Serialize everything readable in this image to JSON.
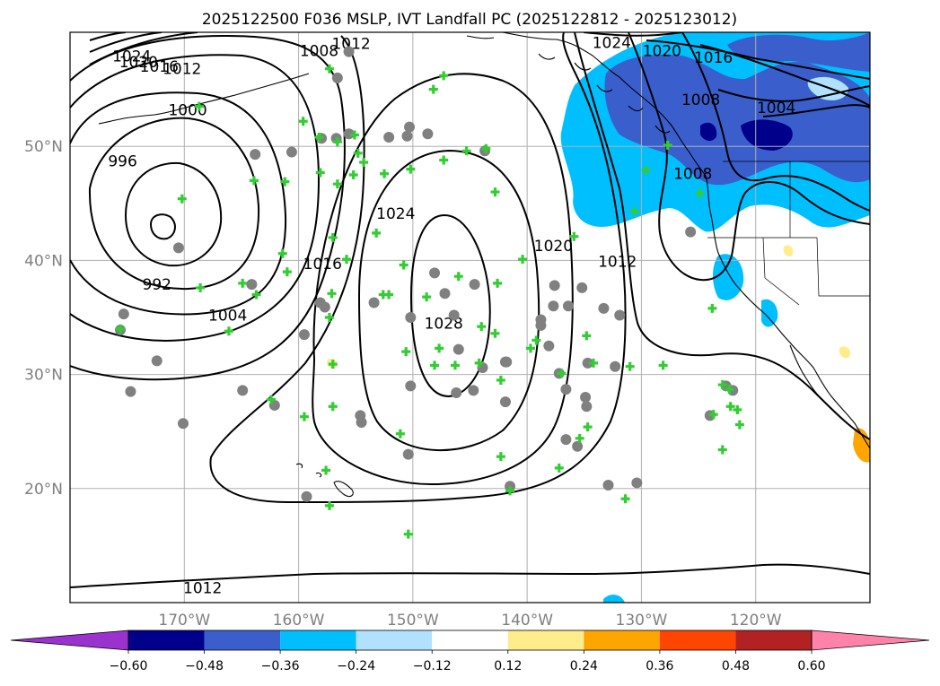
{
  "title": "2025122500 F036 MSLP, IVT Landfall PC (2025122812 - 2025123012)",
  "map": {
    "lon_ticks": [
      {
        "lon": -170,
        "label": "170°W"
      },
      {
        "lon": -160,
        "label": "160°W"
      },
      {
        "lon": -150,
        "label": "150°W"
      },
      {
        "lon": -140,
        "label": "140°W"
      },
      {
        "lon": -130,
        "label": "130°W"
      },
      {
        "lon": -120,
        "label": "120°W"
      }
    ],
    "lat_ticks": [
      {
        "lat": 20,
        "label": "20°N"
      },
      {
        "lat": 30,
        "label": "30°N"
      },
      {
        "lat": 40,
        "label": "40°N"
      },
      {
        "lat": 50,
        "label": "50°N"
      }
    ],
    "gridlines": true,
    "contour_labels": [
      {
        "text": "1024",
        "lon": -174.6,
        "lat": 57.9
      },
      {
        "text": "1020",
        "lon": -174.0,
        "lat": 57.4
      },
      {
        "text": "1016",
        "lon": -172.2,
        "lat": 57.0
      },
      {
        "text": "1012",
        "lon": -170.2,
        "lat": 56.8
      },
      {
        "text": "1008",
        "lon": -158.2,
        "lat": 58.4
      },
      {
        "text": "1012",
        "lon": -155.4,
        "lat": 59.0
      },
      {
        "text": "1000",
        "lon": -169.7,
        "lat": 53.2
      },
      {
        "text": "996",
        "lon": -175.4,
        "lat": 48.7
      },
      {
        "text": "992",
        "lon": -172.4,
        "lat": 37.9
      },
      {
        "text": "1004",
        "lon": -166.2,
        "lat": 35.2
      },
      {
        "text": "1016",
        "lon": -157.9,
        "lat": 39.7
      },
      {
        "text": "1024",
        "lon": -151.5,
        "lat": 44.1
      },
      {
        "text": "1028",
        "lon": -147.3,
        "lat": 34.5
      },
      {
        "text": "1020",
        "lon": -137.7,
        "lat": 41.3
      },
      {
        "text": "1012",
        "lon": -132.1,
        "lat": 39.9
      },
      {
        "text": "1024",
        "lon": -132.6,
        "lat": 59.1
      },
      {
        "text": "1020",
        "lon": -128.2,
        "lat": 58.4
      },
      {
        "text": "1016",
        "lon": -123.7,
        "lat": 57.8
      },
      {
        "text": "1008",
        "lon": -124.8,
        "lat": 54.1
      },
      {
        "text": "1004",
        "lon": -118.2,
        "lat": 53.4
      },
      {
        "text": "1008",
        "lon": -125.5,
        "lat": 47.6
      },
      {
        "text": "1012",
        "lon": -168.4,
        "lat": 11.3
      }
    ],
    "markers_plus": [
      [
        -157.3,
        56.8
      ],
      [
        -148.2,
        55.0
      ],
      [
        -147.3,
        56.2
      ],
      [
        -168.7,
        53.5
      ],
      [
        -159.6,
        52.2
      ],
      [
        -158.2,
        50.8
      ],
      [
        -156.6,
        50.4
      ],
      [
        -155.1,
        51.0
      ],
      [
        -154.8,
        49.4
      ],
      [
        -154.3,
        48.6
      ],
      [
        -158.1,
        47.7
      ],
      [
        -156.6,
        46.7
      ],
      [
        -155.2,
        47.5
      ],
      [
        -152.5,
        47.6
      ],
      [
        -150.2,
        48.0
      ],
      [
        -147.3,
        48.8
      ],
      [
        -145.3,
        49.6
      ],
      [
        -143.6,
        49.8
      ],
      [
        -142.8,
        46.0
      ],
      [
        -163.9,
        47.0
      ],
      [
        -161.2,
        46.9
      ],
      [
        -170.2,
        45.4
      ],
      [
        -153.2,
        42.4
      ],
      [
        -157.0,
        42.0
      ],
      [
        -161.4,
        40.6
      ],
      [
        -155.8,
        40.1
      ],
      [
        -161.0,
        39.0
      ],
      [
        -150.8,
        39.6
      ],
      [
        -146.0,
        38.6
      ],
      [
        -142.6,
        38.0
      ],
      [
        -140.4,
        40.1
      ],
      [
        -168.6,
        37.6
      ],
      [
        -164.9,
        38.0
      ],
      [
        -163.7,
        37.0
      ],
      [
        -157.1,
        37.1
      ],
      [
        -152.6,
        37.0
      ],
      [
        -152.1,
        37.0
      ],
      [
        -148.8,
        36.8
      ],
      [
        -157.3,
        35.0
      ],
      [
        -144.0,
        34.2
      ],
      [
        -142.8,
        33.6
      ],
      [
        -166.1,
        33.8
      ],
      [
        -175.6,
        34.0
      ],
      [
        -150.6,
        32.0
      ],
      [
        -147.7,
        32.3
      ],
      [
        -148.1,
        30.8
      ],
      [
        -146.3,
        30.8
      ],
      [
        -144.2,
        31.0
      ],
      [
        -139.7,
        32.3
      ],
      [
        -139.2,
        33.0
      ],
      [
        -134.8,
        33.4
      ],
      [
        -137.0,
        30.1
      ],
      [
        -142.3,
        29.5
      ],
      [
        -157.0,
        30.9
      ],
      [
        -157.0,
        27.2
      ],
      [
        -162.4,
        27.8
      ],
      [
        -159.5,
        26.3
      ],
      [
        -151.1,
        24.8
      ],
      [
        -150.4,
        16.0
      ],
      [
        -142.3,
        22.8
      ],
      [
        -141.5,
        19.8
      ],
      [
        -134.7,
        25.4
      ],
      [
        -135.4,
        24.4
      ],
      [
        -137.2,
        21.8
      ],
      [
        -131.4,
        19.1
      ],
      [
        -157.6,
        21.6
      ],
      [
        -157.3,
        18.5
      ],
      [
        -128.1,
        30.8
      ],
      [
        -131.0,
        30.7
      ],
      [
        -134.2,
        31.0
      ],
      [
        -123.8,
        35.8
      ],
      [
        -122.9,
        29.1
      ],
      [
        -122.3,
        28.7
      ],
      [
        -122.2,
        27.2
      ],
      [
        -121.6,
        26.9
      ],
      [
        -121.4,
        25.6
      ],
      [
        -123.7,
        26.5
      ],
      [
        -122.9,
        23.4
      ],
      [
        -135.9,
        42.1
      ],
      [
        -130.6,
        44.3
      ],
      [
        -129.6,
        47.9
      ],
      [
        -127.7,
        50.1
      ],
      [
        -124.9,
        45.9
      ]
    ],
    "markers_dot": [
      [
        -156.6,
        56.0
      ],
      [
        -155.6,
        58.3
      ],
      [
        -148.7,
        51.1
      ],
      [
        -150.3,
        51.7
      ],
      [
        -150.5,
        50.9
      ],
      [
        -152.1,
        50.8
      ],
      [
        -156.7,
        50.7
      ],
      [
        -158.0,
        50.7
      ],
      [
        -155.6,
        51.1
      ],
      [
        -160.6,
        49.5
      ],
      [
        -163.8,
        49.3
      ],
      [
        -143.7,
        49.6
      ],
      [
        -170.5,
        41.1
      ],
      [
        -175.3,
        35.3
      ],
      [
        -175.6,
        33.9
      ],
      [
        -172.4,
        31.2
      ],
      [
        -174.7,
        28.5
      ],
      [
        -170.1,
        25.7
      ],
      [
        -164.9,
        28.6
      ],
      [
        -162.1,
        27.3
      ],
      [
        -164.1,
        37.9
      ],
      [
        -158.1,
        36.3
      ],
      [
        -157.7,
        35.9
      ],
      [
        -159.5,
        33.5
      ],
      [
        -153.4,
        36.3
      ],
      [
        -150.2,
        35.0
      ],
      [
        -148.1,
        38.9
      ],
      [
        -147.2,
        37.1
      ],
      [
        -146.4,
        35.2
      ],
      [
        -144.6,
        37.9
      ],
      [
        -143.9,
        30.6
      ],
      [
        -141.9,
        31.1
      ],
      [
        -141.9,
        27.6
      ],
      [
        -141.5,
        20.2
      ],
      [
        -138.8,
        34.8
      ],
      [
        -138.8,
        34.3
      ],
      [
        -136.4,
        36.0
      ],
      [
        -137.6,
        37.8
      ],
      [
        -137.7,
        36.0
      ],
      [
        -135.2,
        37.6
      ],
      [
        -133.3,
        35.8
      ],
      [
        -134.7,
        31.0
      ],
      [
        -137.2,
        30.1
      ],
      [
        -136.6,
        28.7
      ],
      [
        -134.9,
        28.0
      ],
      [
        -134.8,
        27.2
      ],
      [
        -135.6,
        23.7
      ],
      [
        -136.6,
        24.3
      ],
      [
        -138.1,
        32.5
      ],
      [
        -132.9,
        20.3
      ],
      [
        -130.4,
        20.5
      ],
      [
        -131.9,
        35.2
      ],
      [
        -132.3,
        30.7
      ],
      [
        -146.0,
        32.2
      ],
      [
        -146.2,
        28.4
      ],
      [
        -144.7,
        28.6
      ],
      [
        -141.8,
        31.1
      ],
      [
        -154.6,
        26.4
      ],
      [
        -154.5,
        25.8
      ],
      [
        -150.2,
        29.0
      ],
      [
        -150.4,
        23.0
      ],
      [
        -159.3,
        19.3
      ],
      [
        -125.7,
        42.5
      ],
      [
        -124.0,
        26.4
      ],
      [
        -122.6,
        29.0
      ],
      [
        -122.0,
        28.6
      ]
    ],
    "colorbar": {
      "colors": [
        "#9a32cd",
        "#00008b",
        "#3a5fcd",
        "#00bfff",
        "#b0e2ff",
        "#ffffff",
        "#ffec8b",
        "#ffa500",
        "#ff4500",
        "#b22222",
        "#ff82ab"
      ],
      "labels": [
        "−0.60",
        "−0.48",
        "−0.36",
        "−0.24",
        "−0.12",
        "0.12",
        "0.24",
        "0.36",
        "0.48",
        "0.60"
      ]
    }
  }
}
